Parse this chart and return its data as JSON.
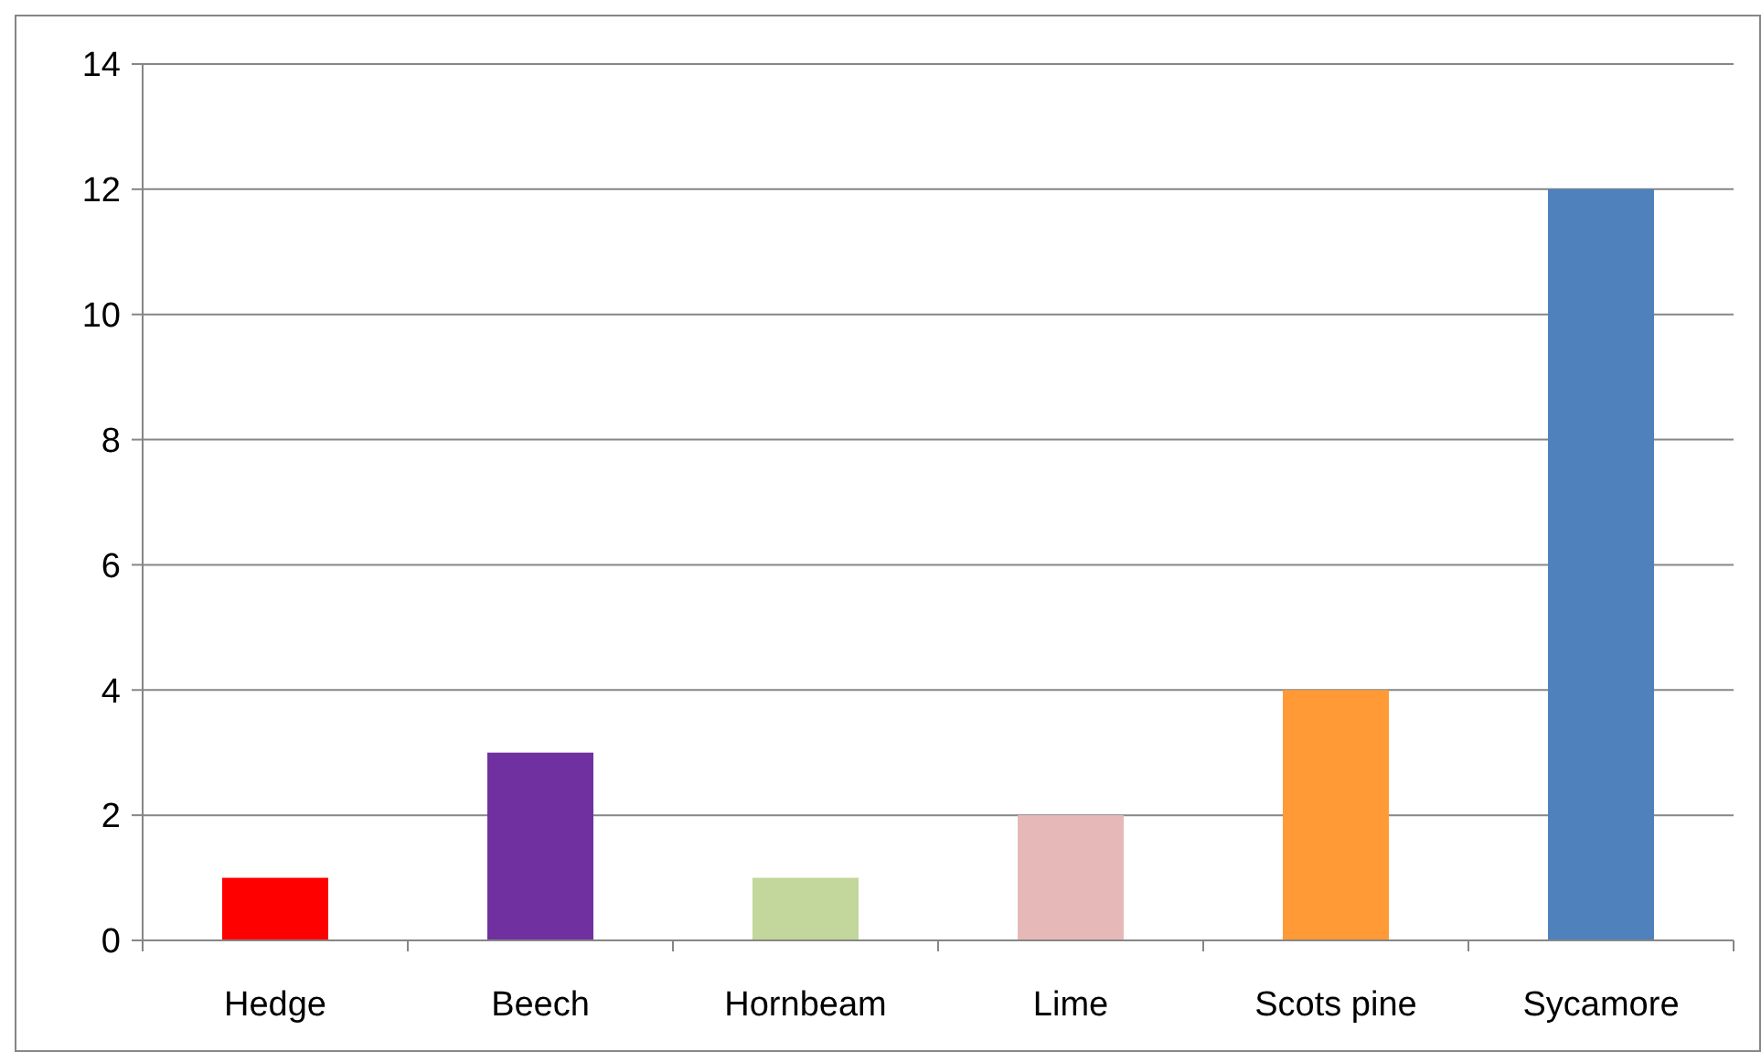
{
  "chart_data": {
    "type": "bar",
    "categories": [
      "Hedge",
      "Beech",
      "Hornbeam",
      "Lime",
      "Scots pine",
      "Sycamore"
    ],
    "values": [
      1,
      3,
      1,
      2,
      4,
      12
    ],
    "colors": [
      "#ff0000",
      "#7030a0",
      "#c3d69b",
      "#e6b9b8",
      "#ff9a37",
      "#4f81bd"
    ],
    "ylim": [
      0,
      14
    ],
    "yticks": [
      0,
      2,
      4,
      6,
      8,
      10,
      12,
      14
    ],
    "grid": "y"
  }
}
